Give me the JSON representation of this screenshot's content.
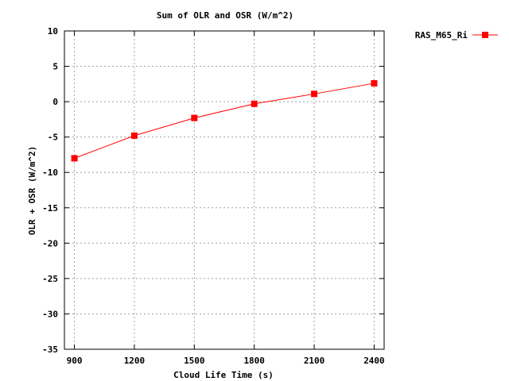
{
  "chart_data": {
    "type": "line",
    "title": "Sum of OLR and OSR (W/m^2)",
    "xlabel": "Cloud Life Time (s)",
    "ylabel": "OLR + OSR (W/m^2)",
    "x": [
      900,
      1200,
      1500,
      1800,
      2100,
      2400
    ],
    "xlim": [
      850,
      2450
    ],
    "ylim": [
      -35,
      10
    ],
    "xticks": [
      900,
      1200,
      1500,
      1800,
      2100,
      2400
    ],
    "yticks": [
      10,
      5,
      0,
      -5,
      -10,
      -15,
      -20,
      -25,
      -30,
      -35
    ],
    "grid": true,
    "legend_position": "outside-top-right",
    "series": [
      {
        "name": "RAS_M65_Ri",
        "color": "#ff0000",
        "marker": "square",
        "values": [
          -8.0,
          -4.8,
          -2.3,
          -0.3,
          1.1,
          2.6
        ]
      }
    ]
  }
}
